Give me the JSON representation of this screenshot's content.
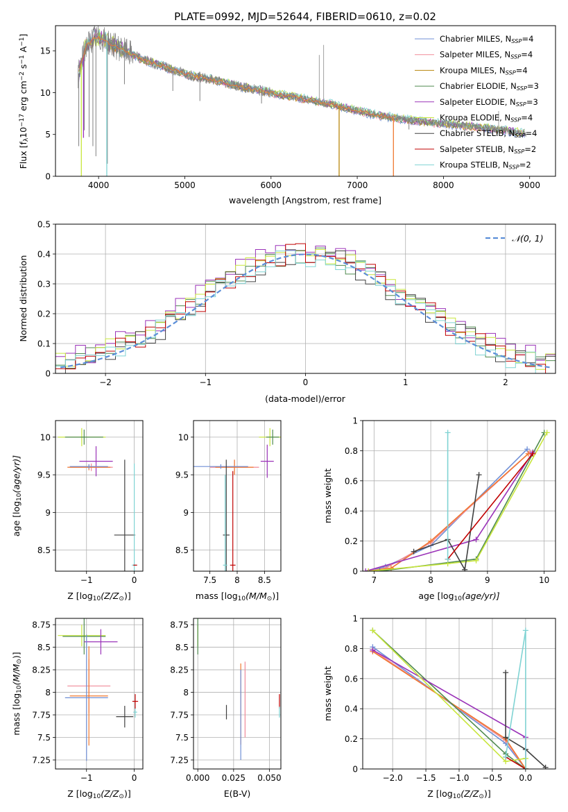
{
  "figure": {
    "title": "PLATE=0992, MJD=52644, FIBERID=0610, z=0.02"
  },
  "colors": {
    "chabrier_miles": "#6f8fd6",
    "salpeter_miles": "#f08a98",
    "kroupa_miles": "#b8860b",
    "chabrier_elodie": "#4f8a4f",
    "salpeter_elodie": "#9a32b8",
    "kroupa_elodie": "#c8e63c",
    "chabrier_stelib": "#404040",
    "salpeter_stelib": "#c00000",
    "kroupa_stelib": "#7fd3d3",
    "data": "#808080",
    "gaussian": "#5b8ed8",
    "orange": "#f07830"
  },
  "chart_data": [
    {
      "id": "spectrum",
      "type": "line",
      "title": "PLATE=0992, MJD=52644, FIBERID=0610, z=0.02",
      "xlabel": "wavelength [Angstrom, rest frame]",
      "ylabel_main": "Flux [f",
      "ylabel_lambda": "λ",
      "ylabel_mid": "10",
      "ylabel_exp1": "−17",
      "ylabel_unit": " erg cm",
      "ylabel_exp2": "−2",
      "ylabel_s": " s",
      "ylabel_exp3": "−1",
      "ylabel_end": " A",
      "ylabel_exp4": "−1",
      "ylabel_close": "]",
      "xlim": [
        3500,
        9300
      ],
      "ylim": [
        0,
        18
      ],
      "xticks": [
        4000,
        5000,
        6000,
        7000,
        8000,
        9000
      ],
      "yticks": [
        0,
        5,
        10,
        15
      ],
      "grid": false,
      "legend_position": "top-right",
      "legend": [
        {
          "pre": "Chabrier MILES, N",
          "sub": "SSP",
          "post": "=4",
          "color": "#6f8fd6"
        },
        {
          "pre": "Salpeter MILES, N",
          "sub": "SSP",
          "post": "=4",
          "color": "#f08a98"
        },
        {
          "pre": "Kroupa MILES, N",
          "sub": "SSP",
          "post": "=4",
          "color": "#b8860b"
        },
        {
          "pre": "Chabrier ELODIE, N",
          "sub": "SSP",
          "post": "=3",
          "color": "#4f8a4f"
        },
        {
          "pre": "Salpeter ELODIE, N",
          "sub": "SSP",
          "post": "=3",
          "color": "#9a32b8"
        },
        {
          "pre": "Kroupa ELODIE, N",
          "sub": "SSP",
          "post": "=4",
          "color": "#c8e63c"
        },
        {
          "pre": "Chabrier STELIB, N",
          "sub": "SSP",
          "post": "=4",
          "color": "#404040"
        },
        {
          "pre": "Salpeter STELIB, N",
          "sub": "SSP",
          "post": "=2",
          "color": "#c00000"
        },
        {
          "pre": "Kroupa STELIB, N",
          "sub": "SSP",
          "post": "=2",
          "color": "#7fd3d3"
        }
      ],
      "continuum": {
        "x": [
          3750,
          3850,
          3950,
          4050,
          4150,
          4300,
          4500,
          4700,
          4900,
          5100,
          5300,
          5500,
          5700,
          5900,
          6100,
          6300,
          6500,
          6700,
          6900,
          7100,
          7300,
          7500,
          7700,
          7900,
          8100,
          8300,
          8500,
          8700,
          8900
        ],
        "y": [
          11.5,
          15.5,
          16.6,
          16.4,
          15.8,
          15.0,
          14.0,
          13.3,
          12.6,
          12.0,
          11.6,
          11.1,
          10.6,
          10.2,
          9.8,
          9.4,
          9.0,
          8.6,
          8.1,
          7.6,
          7.2,
          6.9,
          6.6,
          6.4,
          6.2,
          6.0,
          5.8,
          5.5,
          5.2
        ]
      },
      "absorption_lines": [
        {
          "x": 3770,
          "y": 3.6
        },
        {
          "x": 3835,
          "y": 5.5
        },
        {
          "x": 3890,
          "y": 4.7
        },
        {
          "x": 3934,
          "y": 3.6
        },
        {
          "x": 3969,
          "y": 2.4
        },
        {
          "x": 4102,
          "y": 1.5
        },
        {
          "x": 4300,
          "y": 11.0
        },
        {
          "x": 4861,
          "y": 10.2
        },
        {
          "x": 5175,
          "y": 9.0
        },
        {
          "x": 5890,
          "y": 8.7
        },
        {
          "x": 6563,
          "y": 9.1
        },
        {
          "x": 7600,
          "y": 5.6
        }
      ],
      "model_dropouts": [
        {
          "x": 3800,
          "y": 0,
          "color": "#c8e63c"
        },
        {
          "x": 3825,
          "y": 4.6,
          "color": "#9a32b8"
        },
        {
          "x": 4095,
          "y": 0,
          "color": "#7fd3d3"
        },
        {
          "x": 6790,
          "y": 0,
          "color": "#b8860b"
        },
        {
          "x": 7420,
          "y": 0,
          "color": "#f07830"
        }
      ],
      "data_spikes": [
        {
          "x": 6560,
          "y": 14.5
        },
        {
          "x": 6610,
          "y": 15.7
        },
        {
          "x": 8640,
          "y": 7.8
        }
      ]
    },
    {
      "id": "residuals",
      "type": "bar",
      "xlabel": "(data-model)/error",
      "ylabel": "Normed distribution",
      "xlim": [
        -2.5,
        2.5
      ],
      "ylim": [
        0,
        0.5
      ],
      "xticks": [
        -2,
        -1,
        0,
        1,
        2
      ],
      "yticks": [
        0.0,
        0.1,
        0.2,
        0.3,
        0.4,
        0.5
      ],
      "grid": true,
      "legend_position": "top-right",
      "legend": [
        {
          "label": "𝒩(0, 1)",
          "color": "#5b8ed8",
          "style": "dashed"
        }
      ],
      "bin_width": 0.1,
      "bin_start": -2.5,
      "series": [
        {
          "name": "Chabrier ELODIE",
          "color": "#4f8a4f",
          "offset": 0.006,
          "seed": 1
        },
        {
          "name": "Salpeter ELODIE",
          "color": "#9a32b8",
          "offset": 0.018,
          "seed": 2
        },
        {
          "name": "Kroupa ELODIE",
          "color": "#c8e63c",
          "offset": 0.012,
          "seed": 3
        },
        {
          "name": "Chabrier STELIB",
          "color": "#404040",
          "offset": -0.004,
          "seed": 4
        },
        {
          "name": "Salpeter STELIB",
          "color": "#c00000",
          "offset": 0.002,
          "seed": 5
        },
        {
          "name": "Kroupa STELIB",
          "color": "#7fd3d3",
          "offset": -0.006,
          "seed": 6
        }
      ],
      "gaussian": {
        "mean": 0,
        "sigma": 1
      }
    },
    {
      "id": "age_vs_Z",
      "type": "scatter",
      "xlabel_pre": "Z [log",
      "xlabel_sub": "10",
      "xlabel_post": "(Z/Z",
      "xlabel_sun": "⊙",
      "xlabel_close": ")]",
      "ylabel_pre": "age  [log",
      "ylabel_sub": "10",
      "ylabel_post": "(age/yr)]",
      "xlim": [
        -1.65,
        0.18
      ],
      "ylim": [
        8.22,
        10.22
      ],
      "xticks": [
        -1,
        0
      ],
      "yticks": [
        8.5,
        9.0,
        9.5,
        10.0
      ],
      "grid": true,
      "points": [
        {
          "x": -1.1,
          "y": 10.0,
          "xerr": 0.5,
          "yerr": 0.12,
          "color": "#c8e63c"
        },
        {
          "x": -1.05,
          "y": 10.0,
          "xerr": 0.4,
          "yerr": 0.1,
          "color": "#4f8a4f"
        },
        {
          "x": -0.8,
          "y": 9.68,
          "xerr": 0.35,
          "yerr": 0.2,
          "color": "#9a32b8"
        },
        {
          "x": -0.9,
          "y": 9.6,
          "xerr": 0.45,
          "yerr": 0.05,
          "color": "#f08a98"
        },
        {
          "x": -0.95,
          "y": 9.6,
          "xerr": 0.45,
          "yerr": 0.04,
          "color": "#f07830"
        },
        {
          "x": -0.95,
          "y": 9.61,
          "xerr": 0.4,
          "yerr": 0.03,
          "color": "#6f8fd6"
        },
        {
          "x": -0.2,
          "y": 8.7,
          "xerr": 0.22,
          "yerr": 1.0,
          "color": "#404040"
        },
        {
          "x": 0.0,
          "y": 8.3,
          "xerr": 0.05,
          "yerr": 1.35,
          "color": "#7fd3d3"
        },
        {
          "x": 0.02,
          "y": 8.3,
          "xerr": 0.04,
          "yerr": 0.0,
          "color": "#c00000"
        }
      ]
    },
    {
      "id": "age_vs_mass",
      "type": "scatter",
      "xlabel_pre": "mass [log",
      "xlabel_sub": "10",
      "xlabel_post": "(M/M",
      "xlabel_sun": "⊙",
      "xlabel_close": ")]",
      "xlim": [
        7.2,
        8.8
      ],
      "ylim": [
        8.22,
        10.22
      ],
      "xticks": [
        7.5,
        8.0,
        8.5
      ],
      "yticks": [
        8.5,
        9.0,
        9.5,
        10.0
      ],
      "grid": true,
      "points": [
        {
          "x": 8.6,
          "y": 10.0,
          "xerr": 0.2,
          "yerr": 0.12,
          "color": "#c8e63c"
        },
        {
          "x": 8.65,
          "y": 10.0,
          "xerr": 0.12,
          "yerr": 0.1,
          "color": "#4f8a4f"
        },
        {
          "x": 8.55,
          "y": 9.68,
          "xerr": 0.12,
          "yerr": 0.22,
          "color": "#9a32b8"
        },
        {
          "x": 7.95,
          "y": 9.6,
          "xerr": 0.45,
          "yerr": 0.1,
          "color": "#f08a98"
        },
        {
          "x": 7.95,
          "y": 9.6,
          "xerr": 0.35,
          "yerr": 0.1,
          "color": "#f07830"
        },
        {
          "x": 7.7,
          "y": 9.61,
          "xerr": 0.5,
          "yerr": 0.03,
          "color": "#6f8fd6"
        },
        {
          "x": 7.8,
          "y": 8.7,
          "xerr": 0.06,
          "yerr": 1.0,
          "color": "#404040"
        },
        {
          "x": 7.78,
          "y": 8.3,
          "xerr": 0.04,
          "yerr": 1.2,
          "color": "#7fd3d3"
        },
        {
          "x": 7.92,
          "y": 8.3,
          "xerr": 0.05,
          "yerr": 1.25,
          "color": "#c00000"
        }
      ]
    },
    {
      "id": "weight_vs_age",
      "type": "line",
      "xlabel_pre": "age  [log",
      "xlabel_sub": "10",
      "xlabel_post": "(age/yr)]",
      "ylabel": "mass weight",
      "xlim": [
        6.8,
        10.2
      ],
      "ylim": [
        0,
        1.0
      ],
      "xticks": [
        7,
        8,
        9,
        10
      ],
      "yticks": [
        0.0,
        0.2,
        0.4,
        0.6,
        0.8,
        1.0
      ],
      "grid": true,
      "series": [
        {
          "color": "#6f8fd6",
          "x": [
            6.9,
            7.2,
            8.0,
            9.7
          ],
          "y": [
            0.0,
            0.03,
            0.17,
            0.81
          ]
        },
        {
          "color": "#f08a98",
          "x": [
            6.9,
            7.2,
            8.0,
            9.75
          ],
          "y": [
            0.0,
            0.02,
            0.19,
            0.79
          ]
        },
        {
          "color": "#f07830",
          "x": [
            6.9,
            7.3,
            8.0,
            9.72
          ],
          "y": [
            0.0,
            0.02,
            0.2,
            0.78
          ]
        },
        {
          "color": "#4f8a4f",
          "x": [
            7.1,
            8.8,
            10.0
          ],
          "y": [
            0.0,
            0.08,
            0.92
          ]
        },
        {
          "color": "#9a32b8",
          "x": [
            6.85,
            8.8,
            9.8
          ],
          "y": [
            0.0,
            0.21,
            0.79
          ]
        },
        {
          "color": "#c8e63c",
          "x": [
            6.9,
            8.3,
            8.8,
            10.05
          ],
          "y": [
            0.0,
            0.05,
            0.07,
            0.92
          ]
        },
        {
          "color": "#404040",
          "x": [
            7.7,
            8.3,
            8.6,
            8.85
          ],
          "y": [
            0.13,
            0.21,
            0.01,
            0.64
          ]
        },
        {
          "color": "#c00000",
          "x": [
            8.3,
            9.8
          ],
          "y": [
            0.08,
            0.78
          ]
        },
        {
          "color": "#7fd3d3",
          "x": [
            8.3,
            8.3
          ],
          "y": [
            0.08,
            0.92
          ]
        }
      ]
    },
    {
      "id": "mass_vs_Z",
      "type": "scatter",
      "xlabel_pre": "Z [log",
      "xlabel_sub": "10",
      "xlabel_post": "(Z/Z",
      "xlabel_sun": "⊙",
      "xlabel_close": ")]",
      "ylabel_pre": "mass [log",
      "ylabel_sub": "10",
      "ylabel_post": "(M/M",
      "ylabel_sun": "⊙",
      "ylabel_close": ")]",
      "xlim": [
        -1.65,
        0.18
      ],
      "ylim": [
        7.15,
        8.82
      ],
      "xticks": [
        -1,
        0
      ],
      "yticks": [
        7.25,
        7.5,
        7.75,
        8.0,
        8.25,
        8.5,
        8.75
      ],
      "grid": true,
      "points": [
        {
          "x": -1.1,
          "y": 8.63,
          "xerr": 0.5,
          "yerr": 0.12,
          "color": "#c8e63c"
        },
        {
          "x": -1.05,
          "y": 8.62,
          "xerr": 0.45,
          "yerr": 0.2,
          "color": "#4f8a4f"
        },
        {
          "x": -0.7,
          "y": 8.56,
          "xerr": 0.35,
          "yerr": 0.14,
          "color": "#9a32b8"
        },
        {
          "x": -0.95,
          "y": 8.07,
          "xerr": 0.45,
          "yerr": 0.3,
          "color": "#f08a98"
        },
        {
          "x": -0.95,
          "y": 7.96,
          "xerr": 0.4,
          "yerr": 0.55,
          "color": "#f07830"
        },
        {
          "x": -1.0,
          "y": 7.94,
          "xerr": 0.45,
          "yerr": 0.7,
          "color": "#6f8fd6"
        },
        {
          "x": -0.2,
          "y": 7.73,
          "xerr": 0.18,
          "yerr": 0.12,
          "color": "#404040"
        },
        {
          "x": 0.02,
          "y": 7.78,
          "xerr": 0.04,
          "yerr": 0.06,
          "color": "#7fd3d3"
        },
        {
          "x": 0.02,
          "y": 7.9,
          "xerr": 0.06,
          "yerr": 0.08,
          "color": "#c00000"
        }
      ]
    },
    {
      "id": "mass_vs_ebv",
      "type": "scatter",
      "xlabel": "E(B-V)",
      "xlim": [
        -0.003,
        0.058
      ],
      "ylim": [
        7.15,
        8.82
      ],
      "xticks": [
        0.0,
        0.025,
        0.05
      ],
      "xticklabels": [
        "0.000",
        "0.025",
        "0.050"
      ],
      "yticks": [
        7.25,
        7.5,
        7.75,
        8.0,
        8.25,
        8.5,
        8.75
      ],
      "grid": true,
      "points": [
        {
          "x": 0.0,
          "y": 8.63,
          "xerr": 0.0,
          "yerr": 0.12,
          "color": "#c8e63c"
        },
        {
          "x": 0.0,
          "y": 8.62,
          "xerr": 0.0,
          "yerr": 0.2,
          "color": "#4f8a4f"
        },
        {
          "x": 0.03,
          "y": 7.87,
          "xerr": 0.0,
          "yerr": 0.45,
          "color": "#f07830"
        },
        {
          "x": 0.03,
          "y": 7.75,
          "xerr": 0.0,
          "yerr": 0.5,
          "color": "#6f8fd6"
        },
        {
          "x": 0.033,
          "y": 7.92,
          "xerr": 0.0,
          "yerr": 0.42,
          "color": "#f08a98"
        },
        {
          "x": 0.02,
          "y": 7.78,
          "xerr": 0.0,
          "yerr": 0.08,
          "color": "#404040"
        },
        {
          "x": 0.057,
          "y": 7.9,
          "xerr": 0.0,
          "yerr": 0.08,
          "color": "#c00000"
        },
        {
          "x": 0.057,
          "y": 7.78,
          "xerr": 0.0,
          "yerr": 0.06,
          "color": "#7fd3d3"
        }
      ]
    },
    {
      "id": "weight_vs_Z",
      "type": "line",
      "xlabel_pre": "Z [log",
      "xlabel_sub": "10",
      "xlabel_post": "(Z/Z",
      "xlabel_sun": "⊙",
      "xlabel_close": ")]",
      "ylabel": "mass weight",
      "xlim": [
        -2.45,
        0.45
      ],
      "ylim": [
        0,
        1.0
      ],
      "xticks": [
        -2.0,
        -1.5,
        -1.0,
        -0.5,
        0.0
      ],
      "xticklabels": [
        "−2.0",
        "−1.5",
        "−1.0",
        "−0.5",
        "0.0"
      ],
      "yticks": [
        0.0,
        0.2,
        0.4,
        0.6,
        0.8,
        1.0
      ],
      "grid": true,
      "series": [
        {
          "color": "#6f8fd6",
          "x": [
            -2.3,
            -0.3,
            0.0
          ],
          "y": [
            0.81,
            0.17,
            0.0
          ]
        },
        {
          "color": "#f08a98",
          "x": [
            -2.3,
            -0.3,
            0.0
          ],
          "y": [
            0.79,
            0.19,
            0.0
          ]
        },
        {
          "color": "#f07830",
          "x": [
            -2.3,
            -0.3,
            0.0
          ],
          "y": [
            0.78,
            0.2,
            0.0
          ]
        },
        {
          "color": "#4f8a4f",
          "x": [
            -2.3,
            -0.3,
            0.0
          ],
          "y": [
            0.92,
            0.1,
            0.0
          ]
        },
        {
          "color": "#9a32b8",
          "x": [
            -2.3,
            0.0,
            0.0
          ],
          "y": [
            0.79,
            0.21,
            0.0
          ]
        },
        {
          "color": "#c8e63c",
          "x": [
            -2.3,
            -0.3,
            0.0,
            0.0
          ],
          "y": [
            0.92,
            0.05,
            0.07,
            0.0
          ]
        },
        {
          "color": "#404040",
          "x": [
            -0.3,
            -0.3,
            0.0,
            0.3
          ],
          "y": [
            0.64,
            0.21,
            0.13,
            0.01
          ]
        },
        {
          "color": "#c00000",
          "x": [
            -0.3,
            0.0
          ],
          "y": [
            0.08,
            0.0
          ]
        },
        {
          "color": "#7fd3d3",
          "x": [
            -0.3,
            0.0,
            0.0
          ],
          "y": [
            0.08,
            0.92,
            0.0
          ]
        }
      ]
    }
  ]
}
